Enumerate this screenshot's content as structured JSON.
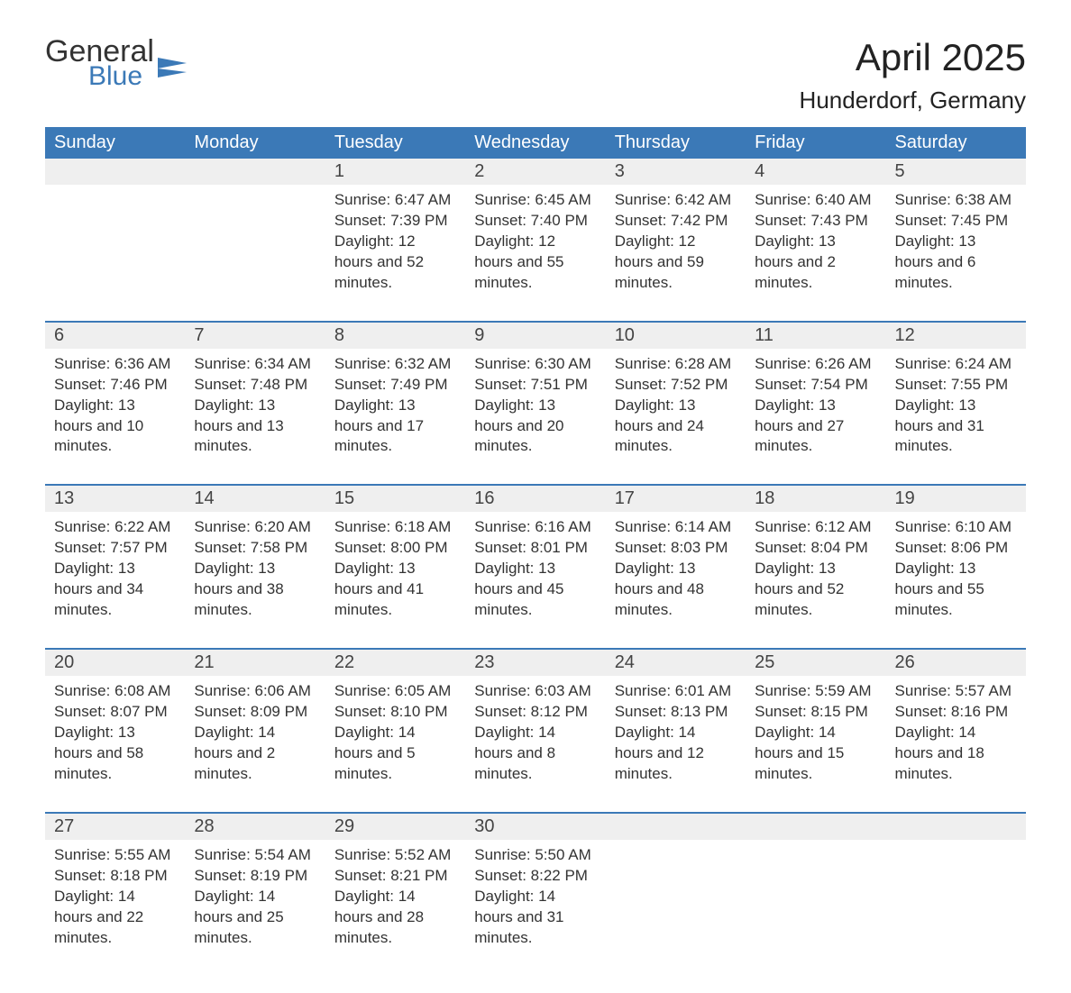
{
  "brand": {
    "line1": "General",
    "line2": "Blue",
    "logo_color": "#3b79b7"
  },
  "title": "April 2025",
  "location": "Hunderdorf, Germany",
  "colors": {
    "header_bg": "#3b79b7",
    "header_text": "#ffffff",
    "daynum_bg": "#efefef",
    "row_divider": "#3b79b7",
    "body_text": "#333333",
    "page_bg": "#ffffff"
  },
  "typography": {
    "title_fontsize": 42,
    "location_fontsize": 26,
    "header_fontsize": 20,
    "daynum_fontsize": 20,
    "detail_fontsize": 17
  },
  "weekdays": [
    "Sunday",
    "Monday",
    "Tuesday",
    "Wednesday",
    "Thursday",
    "Friday",
    "Saturday"
  ],
  "weeks": [
    [
      {
        "n": "",
        "sunrise": "",
        "sunset": "",
        "daylight": ""
      },
      {
        "n": "",
        "sunrise": "",
        "sunset": "",
        "daylight": ""
      },
      {
        "n": "1",
        "sunrise": "Sunrise: 6:47 AM",
        "sunset": "Sunset: 7:39 PM",
        "daylight": "Daylight: 12 hours and 52 minutes."
      },
      {
        "n": "2",
        "sunrise": "Sunrise: 6:45 AM",
        "sunset": "Sunset: 7:40 PM",
        "daylight": "Daylight: 12 hours and 55 minutes."
      },
      {
        "n": "3",
        "sunrise": "Sunrise: 6:42 AM",
        "sunset": "Sunset: 7:42 PM",
        "daylight": "Daylight: 12 hours and 59 minutes."
      },
      {
        "n": "4",
        "sunrise": "Sunrise: 6:40 AM",
        "sunset": "Sunset: 7:43 PM",
        "daylight": "Daylight: 13 hours and 2 minutes."
      },
      {
        "n": "5",
        "sunrise": "Sunrise: 6:38 AM",
        "sunset": "Sunset: 7:45 PM",
        "daylight": "Daylight: 13 hours and 6 minutes."
      }
    ],
    [
      {
        "n": "6",
        "sunrise": "Sunrise: 6:36 AM",
        "sunset": "Sunset: 7:46 PM",
        "daylight": "Daylight: 13 hours and 10 minutes."
      },
      {
        "n": "7",
        "sunrise": "Sunrise: 6:34 AM",
        "sunset": "Sunset: 7:48 PM",
        "daylight": "Daylight: 13 hours and 13 minutes."
      },
      {
        "n": "8",
        "sunrise": "Sunrise: 6:32 AM",
        "sunset": "Sunset: 7:49 PM",
        "daylight": "Daylight: 13 hours and 17 minutes."
      },
      {
        "n": "9",
        "sunrise": "Sunrise: 6:30 AM",
        "sunset": "Sunset: 7:51 PM",
        "daylight": "Daylight: 13 hours and 20 minutes."
      },
      {
        "n": "10",
        "sunrise": "Sunrise: 6:28 AM",
        "sunset": "Sunset: 7:52 PM",
        "daylight": "Daylight: 13 hours and 24 minutes."
      },
      {
        "n": "11",
        "sunrise": "Sunrise: 6:26 AM",
        "sunset": "Sunset: 7:54 PM",
        "daylight": "Daylight: 13 hours and 27 minutes."
      },
      {
        "n": "12",
        "sunrise": "Sunrise: 6:24 AM",
        "sunset": "Sunset: 7:55 PM",
        "daylight": "Daylight: 13 hours and 31 minutes."
      }
    ],
    [
      {
        "n": "13",
        "sunrise": "Sunrise: 6:22 AM",
        "sunset": "Sunset: 7:57 PM",
        "daylight": "Daylight: 13 hours and 34 minutes."
      },
      {
        "n": "14",
        "sunrise": "Sunrise: 6:20 AM",
        "sunset": "Sunset: 7:58 PM",
        "daylight": "Daylight: 13 hours and 38 minutes."
      },
      {
        "n": "15",
        "sunrise": "Sunrise: 6:18 AM",
        "sunset": "Sunset: 8:00 PM",
        "daylight": "Daylight: 13 hours and 41 minutes."
      },
      {
        "n": "16",
        "sunrise": "Sunrise: 6:16 AM",
        "sunset": "Sunset: 8:01 PM",
        "daylight": "Daylight: 13 hours and 45 minutes."
      },
      {
        "n": "17",
        "sunrise": "Sunrise: 6:14 AM",
        "sunset": "Sunset: 8:03 PM",
        "daylight": "Daylight: 13 hours and 48 minutes."
      },
      {
        "n": "18",
        "sunrise": "Sunrise: 6:12 AM",
        "sunset": "Sunset: 8:04 PM",
        "daylight": "Daylight: 13 hours and 52 minutes."
      },
      {
        "n": "19",
        "sunrise": "Sunrise: 6:10 AM",
        "sunset": "Sunset: 8:06 PM",
        "daylight": "Daylight: 13 hours and 55 minutes."
      }
    ],
    [
      {
        "n": "20",
        "sunrise": "Sunrise: 6:08 AM",
        "sunset": "Sunset: 8:07 PM",
        "daylight": "Daylight: 13 hours and 58 minutes."
      },
      {
        "n": "21",
        "sunrise": "Sunrise: 6:06 AM",
        "sunset": "Sunset: 8:09 PM",
        "daylight": "Daylight: 14 hours and 2 minutes."
      },
      {
        "n": "22",
        "sunrise": "Sunrise: 6:05 AM",
        "sunset": "Sunset: 8:10 PM",
        "daylight": "Daylight: 14 hours and 5 minutes."
      },
      {
        "n": "23",
        "sunrise": "Sunrise: 6:03 AM",
        "sunset": "Sunset: 8:12 PM",
        "daylight": "Daylight: 14 hours and 8 minutes."
      },
      {
        "n": "24",
        "sunrise": "Sunrise: 6:01 AM",
        "sunset": "Sunset: 8:13 PM",
        "daylight": "Daylight: 14 hours and 12 minutes."
      },
      {
        "n": "25",
        "sunrise": "Sunrise: 5:59 AM",
        "sunset": "Sunset: 8:15 PM",
        "daylight": "Daylight: 14 hours and 15 minutes."
      },
      {
        "n": "26",
        "sunrise": "Sunrise: 5:57 AM",
        "sunset": "Sunset: 8:16 PM",
        "daylight": "Daylight: 14 hours and 18 minutes."
      }
    ],
    [
      {
        "n": "27",
        "sunrise": "Sunrise: 5:55 AM",
        "sunset": "Sunset: 8:18 PM",
        "daylight": "Daylight: 14 hours and 22 minutes."
      },
      {
        "n": "28",
        "sunrise": "Sunrise: 5:54 AM",
        "sunset": "Sunset: 8:19 PM",
        "daylight": "Daylight: 14 hours and 25 minutes."
      },
      {
        "n": "29",
        "sunrise": "Sunrise: 5:52 AM",
        "sunset": "Sunset: 8:21 PM",
        "daylight": "Daylight: 14 hours and 28 minutes."
      },
      {
        "n": "30",
        "sunrise": "Sunrise: 5:50 AM",
        "sunset": "Sunset: 8:22 PM",
        "daylight": "Daylight: 14 hours and 31 minutes."
      },
      {
        "n": "",
        "sunrise": "",
        "sunset": "",
        "daylight": ""
      },
      {
        "n": "",
        "sunrise": "",
        "sunset": "",
        "daylight": ""
      },
      {
        "n": "",
        "sunrise": "",
        "sunset": "",
        "daylight": ""
      }
    ]
  ]
}
